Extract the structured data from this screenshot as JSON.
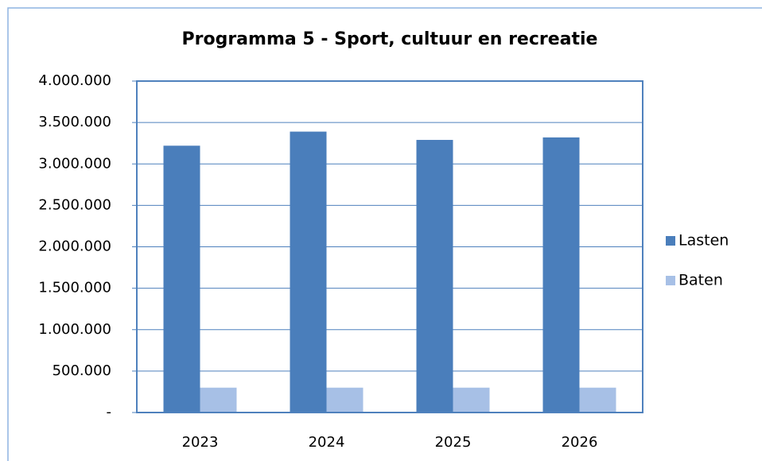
{
  "chart_data": {
    "type": "bar",
    "title": "Programma 5 - Sport, cultuur en recreatie",
    "categories": [
      "2023",
      "2024",
      "2025",
      "2026"
    ],
    "series": [
      {
        "name": "Lasten",
        "color": "#4a7ebb",
        "values": [
          3220000,
          3390000,
          3290000,
          3320000
        ]
      },
      {
        "name": "Baten",
        "color": "#a7c0e6",
        "values": [
          300000,
          300000,
          300000,
          300000
        ]
      }
    ],
    "ylim": [
      0,
      4000000
    ],
    "yticks": [
      {
        "value": 0,
        "label": "-"
      },
      {
        "value": 500000,
        "label": "500.000"
      },
      {
        "value": 1000000,
        "label": "1.000.000"
      },
      {
        "value": 1500000,
        "label": "1.500.000"
      },
      {
        "value": 2000000,
        "label": "2.000.000"
      },
      {
        "value": 2500000,
        "label": "2.500.000"
      },
      {
        "value": 3000000,
        "label": "3.000.000"
      },
      {
        "value": 3500000,
        "label": "3.500.000"
      },
      {
        "value": 4000000,
        "label": "4.000.000"
      }
    ],
    "grid": true,
    "legend": "right"
  }
}
